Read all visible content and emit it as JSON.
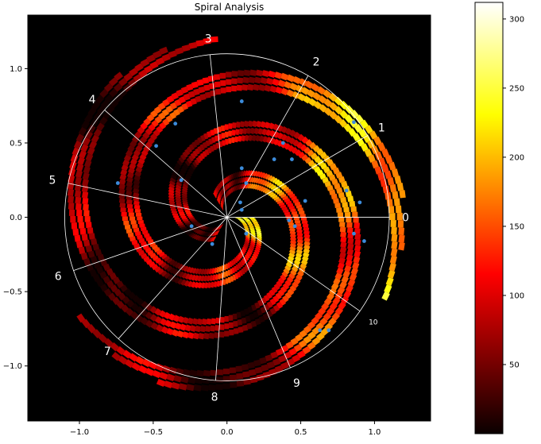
{
  "chart_data": {
    "type": "polar-spiral-heatmap",
    "title": "Spiral Analysis",
    "xlim": [
      -1.35,
      1.38
    ],
    "ylim": [
      -1.37,
      1.36
    ],
    "x_ticks": [
      -1.0,
      -0.5,
      0.0,
      0.5,
      1.0
    ],
    "x_tick_labels": [
      "−1.0",
      "−0.5",
      "0.0",
      "0.5",
      "1.0"
    ],
    "y_ticks": [
      1.0,
      0.5,
      0.0,
      -0.5,
      -1.0
    ],
    "y_tick_labels": [
      "1.0",
      "0.5",
      "0.0",
      "−0.5",
      "−1.0"
    ],
    "reference_circle_radius": 1.1,
    "spokes": [
      {
        "label": "0",
        "angle_deg": 0
      },
      {
        "label": "1",
        "angle_deg": 30
      },
      {
        "label": "2",
        "angle_deg": 60
      },
      {
        "label": "3",
        "angle_deg": 96
      },
      {
        "label": "4",
        "angle_deg": 139
      },
      {
        "label": "5",
        "angle_deg": 168
      },
      {
        "label": "6",
        "angle_deg": 199
      },
      {
        "label": "7",
        "angle_deg": 228
      },
      {
        "label": "8",
        "angle_deg": 266
      },
      {
        "label": "9",
        "angle_deg": 293
      },
      {
        "label": "10",
        "angle_deg": 325
      }
    ],
    "spiral": {
      "start_radius": 0.1,
      "radius_growth_per_turn": 0.37,
      "turns": 3.1,
      "band_width": 0.045,
      "bright_arm_phase_deg": 0
    },
    "points": [
      [
        0.09,
        0.1
      ],
      [
        0.1,
        0.05
      ],
      [
        0.13,
        0.23
      ],
      [
        0.1,
        0.33
      ],
      [
        0.1,
        0.78
      ],
      [
        0.32,
        0.39
      ],
      [
        0.38,
        0.5
      ],
      [
        0.44,
        0.39
      ],
      [
        0.53,
        0.11
      ],
      [
        0.42,
        -0.02
      ],
      [
        0.46,
        -0.06
      ],
      [
        0.13,
        -0.11
      ],
      [
        -0.1,
        -0.18
      ],
      [
        -0.24,
        -0.06
      ],
      [
        -0.31,
        0.25
      ],
      [
        -0.48,
        0.48
      ],
      [
        -0.35,
        0.63
      ],
      [
        -0.74,
        0.23
      ],
      [
        0.86,
        0.64
      ],
      [
        0.81,
        0.18
      ],
      [
        0.9,
        0.1
      ],
      [
        0.86,
        -0.11
      ],
      [
        0.93,
        -0.16
      ],
      [
        0.63,
        -0.76
      ],
      [
        0.69,
        -0.76
      ]
    ],
    "colorbar": {
      "colormap": "hot",
      "vmin": 0,
      "vmax": 312,
      "ticks": [
        50,
        100,
        150,
        200,
        250,
        300
      ],
      "tick_labels": [
        "50",
        "100",
        "150",
        "200",
        "250",
        "300"
      ]
    },
    "colors": {
      "axes_background": "#000000",
      "guide_lines": "#ffffff",
      "point_color": "#3c8cdc"
    }
  }
}
